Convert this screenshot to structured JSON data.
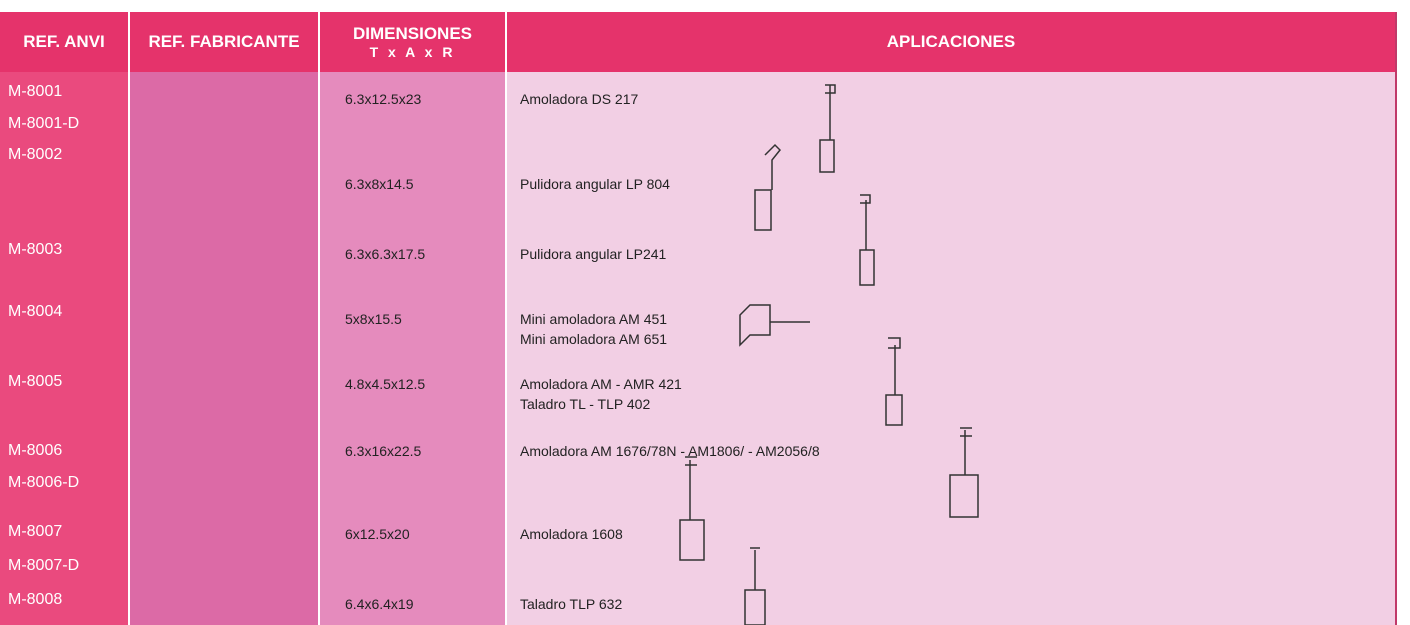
{
  "header": {
    "ref_anvi": "REF. ANVI",
    "ref_fabricante": "REF. FABRICANTE",
    "dimensiones": "DIMENSIONES",
    "dimensiones_sub": "T x A x R",
    "aplicaciones": "APLICACIONES"
  },
  "rows": [
    {
      "refs": [
        "M-8001",
        "M-8001-D"
      ],
      "dimensions": "6.3x12.5x23",
      "applications": [
        "Amoladora DS 217"
      ]
    },
    {
      "refs": [
        "M-8002"
      ],
      "dimensions": "6.3x8x14.5",
      "applications": [
        "Pulidora angular LP 804"
      ]
    },
    {
      "refs": [
        "M-8003"
      ],
      "dimensions": "6.3x6.3x17.5",
      "applications": [
        "Pulidora angular LP241"
      ]
    },
    {
      "refs": [
        "M-8004"
      ],
      "dimensions": "5x8x15.5",
      "applications": [
        "Mini amoladora AM 451",
        "Mini amoladora AM 651"
      ]
    },
    {
      "refs": [
        "M-8005"
      ],
      "dimensions": "4.8x4.5x12.5",
      "applications": [
        "Amoladora AM - AMR 421",
        "Taladro TL - TLP 402"
      ]
    },
    {
      "refs": [
        "M-8006",
        "M-8006-D"
      ],
      "dimensions": "6.3x16x22.5",
      "applications": [
        "Amoladora AM 1676/78N - AM1806/ - AM2056/8"
      ]
    },
    {
      "refs": [
        "M-8007",
        "M-8007-D"
      ],
      "dimensions": "6x12.5x20",
      "applications": [
        "Amoladora 1608"
      ]
    },
    {
      "refs": [
        "M-8008"
      ],
      "dimensions": "6.4x6.4x19",
      "applications": [
        "Taladro TLP 632"
      ]
    }
  ]
}
